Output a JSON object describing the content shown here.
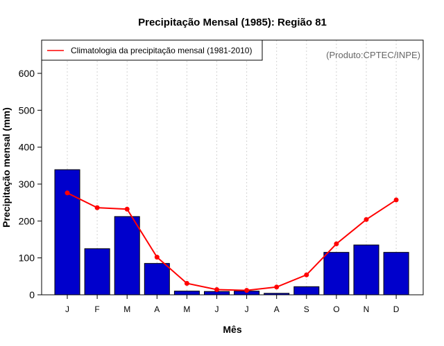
{
  "chart_data": {
    "type": "bar",
    "title": "Precipitação Mensal (1985): Região 81",
    "xlabel": "Mês",
    "ylabel": "Precipitação mensal (mm)",
    "ylim": [
      0,
      690
    ],
    "yticks": [
      0,
      100,
      200,
      300,
      400,
      500,
      600
    ],
    "categories": [
      "J",
      "F",
      "M",
      "A",
      "M",
      "J",
      "J",
      "A",
      "S",
      "O",
      "N",
      "D"
    ],
    "grid": "vertical dotted",
    "series": [
      {
        "name": "Precipitação mensal (1985)",
        "type": "bar",
        "color": "#0000cc",
        "values": [
          339,
          125,
          212,
          85,
          10,
          9,
          10,
          4,
          22,
          115,
          135,
          115
        ]
      },
      {
        "name": "Climatologia da precipitação mensal (1981-2010)",
        "type": "line",
        "color": "#ff0000",
        "values": [
          276,
          236,
          232,
          102,
          31,
          14,
          12,
          21,
          54,
          138,
          204,
          257
        ]
      }
    ],
    "legend": {
      "position": "top-left",
      "entries": [
        "Climatologia da precipitação mensal (1981-2010)"
      ]
    },
    "annotation": "(Produto:CPTEC/INPE)"
  }
}
